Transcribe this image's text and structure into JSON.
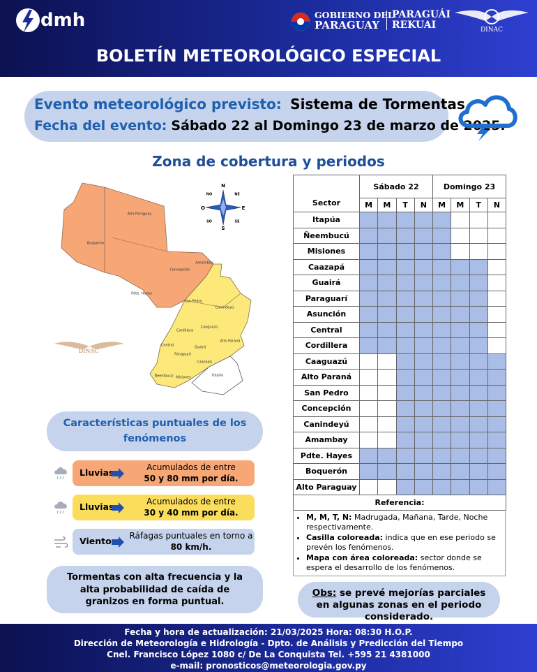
{
  "header": {
    "logo": "dmh",
    "gov_line1": "GOBIERNO DEL",
    "gov_line2": "PARAGUAY",
    "gov_line3": "PARAGUÁI",
    "gov_line4": "REKUAI",
    "dinac": "DINAC",
    "title": "BOLETÍN METEOROLÓGICO ESPECIAL"
  },
  "event": {
    "label1": "Evento meteorológico previsto:",
    "value1": "Sistema de Tormentas",
    "label2": "Fecha del evento:",
    "value2": "Sábado 22 al Domingo 23 de marzo de 2025."
  },
  "section_title": "Zona de cobertura y periodos",
  "map": {
    "compass": {
      "n": "N",
      "ne": "NE",
      "e": "E",
      "se": "SE",
      "s": "S",
      "so": "SO",
      "o": "O",
      "no": "NO"
    },
    "watermark": "DINAC",
    "regions": [
      "Alto Paraguay",
      "Boquerón",
      "Pdte. Hayes",
      "Concepción",
      "Amambay",
      "San Pedro",
      "Canindeyú",
      "Cordillera",
      "Caaguazú",
      "Alto Paraná",
      "Central",
      "Guairá",
      "Paraguarí",
      "Caazapá",
      "Ñeembucú",
      "Misiones",
      "Itapúa"
    ]
  },
  "table": {
    "sector_header": "Sector",
    "days": [
      "Sábado 22",
      "Domingo 23"
    ],
    "periods": [
      "M",
      "M",
      "T",
      "N",
      "M",
      "M",
      "T",
      "N"
    ],
    "rows": [
      {
        "sector": "Itapúa",
        "cells": [
          true,
          true,
          true,
          true,
          true,
          false,
          false,
          false
        ]
      },
      {
        "sector": "Ñeembucú",
        "cells": [
          true,
          true,
          true,
          true,
          true,
          false,
          false,
          false
        ]
      },
      {
        "sector": "Misiones",
        "cells": [
          true,
          true,
          true,
          true,
          true,
          false,
          false,
          false
        ]
      },
      {
        "sector": "Caazapá",
        "cells": [
          true,
          true,
          true,
          true,
          true,
          true,
          true,
          false
        ]
      },
      {
        "sector": "Guairá",
        "cells": [
          true,
          true,
          true,
          true,
          true,
          true,
          true,
          false
        ]
      },
      {
        "sector": "Paraguarí",
        "cells": [
          true,
          true,
          true,
          true,
          true,
          true,
          true,
          false
        ]
      },
      {
        "sector": "Asunción",
        "cells": [
          true,
          true,
          true,
          true,
          true,
          true,
          true,
          false
        ]
      },
      {
        "sector": "Central",
        "cells": [
          true,
          true,
          true,
          true,
          true,
          true,
          true,
          false
        ]
      },
      {
        "sector": "Cordillera",
        "cells": [
          true,
          true,
          true,
          true,
          true,
          true,
          true,
          false
        ]
      },
      {
        "sector": "Caaguazú",
        "cells": [
          false,
          false,
          true,
          true,
          true,
          true,
          true,
          true
        ]
      },
      {
        "sector": "Alto Paraná",
        "cells": [
          false,
          false,
          true,
          true,
          true,
          true,
          true,
          true
        ]
      },
      {
        "sector": "San Pedro",
        "cells": [
          false,
          false,
          true,
          true,
          true,
          true,
          true,
          true
        ]
      },
      {
        "sector": "Concepción",
        "cells": [
          false,
          false,
          true,
          true,
          true,
          true,
          true,
          true
        ]
      },
      {
        "sector": "Canindeyú",
        "cells": [
          false,
          false,
          true,
          true,
          true,
          true,
          true,
          true
        ]
      },
      {
        "sector": "Amambay",
        "cells": [
          false,
          false,
          true,
          true,
          true,
          true,
          true,
          true
        ]
      },
      {
        "sector": "Pdte. Hayes",
        "cells": [
          true,
          true,
          true,
          true,
          true,
          true,
          true,
          true
        ]
      },
      {
        "sector": "Boquerón",
        "cells": [
          true,
          true,
          true,
          true,
          true,
          true,
          true,
          true
        ]
      },
      {
        "sector": "Alto Paraguay",
        "cells": [
          false,
          false,
          true,
          true,
          true,
          true,
          true,
          true
        ]
      }
    ],
    "reference_title": "Referencia:",
    "reference": [
      {
        "term": "M, M, T, N:",
        "text": "Madrugada, Mañana, Tarde, Noche respectivamente."
      },
      {
        "term": "Casilla coloreada:",
        "text": "indica que en ese periodo se prevén los fenómenos."
      },
      {
        "term": "Mapa con área coloreada:",
        "text": "sector donde se espera el desarrollo de los fenómenos."
      }
    ]
  },
  "characteristics": {
    "title": "Características puntuales de los fenómenos",
    "items": [
      {
        "label": "Lluvias",
        "line1": "Acumulados de entre",
        "line2": "50 y 80 mm por día.",
        "color": "#f7a676"
      },
      {
        "label": "Lluvias",
        "line1": "Acumulados de entre",
        "line2": "30 y 40 mm por día.",
        "color": "#fbdd5c"
      },
      {
        "label": "Viento",
        "line1": "Ráfagas puntuales en torno a",
        "line2": "80 km/h.",
        "color": "#c5d3ec"
      }
    ]
  },
  "note": "Tormentas con alta frecuencia y la alta probabilidad de caída de granizos en forma puntual.",
  "obs": {
    "label": "Obs:",
    "text": "se prevé mejorías parciales en algunas zonas en el periodo considerado."
  },
  "footer": [
    "Fecha y hora de actualización: 21/03/2025 Hora: 08:30 H.O.P.",
    "Dirección de Meteorología e Hidrología - Dpto. de Análisis y Predicción del Tiempo",
    "Cnel. Francisco López 1080 c/ De La Conquista Tel. +595 21 4381000",
    "e-mail: pronosticos@meteorologia.gov.py"
  ]
}
